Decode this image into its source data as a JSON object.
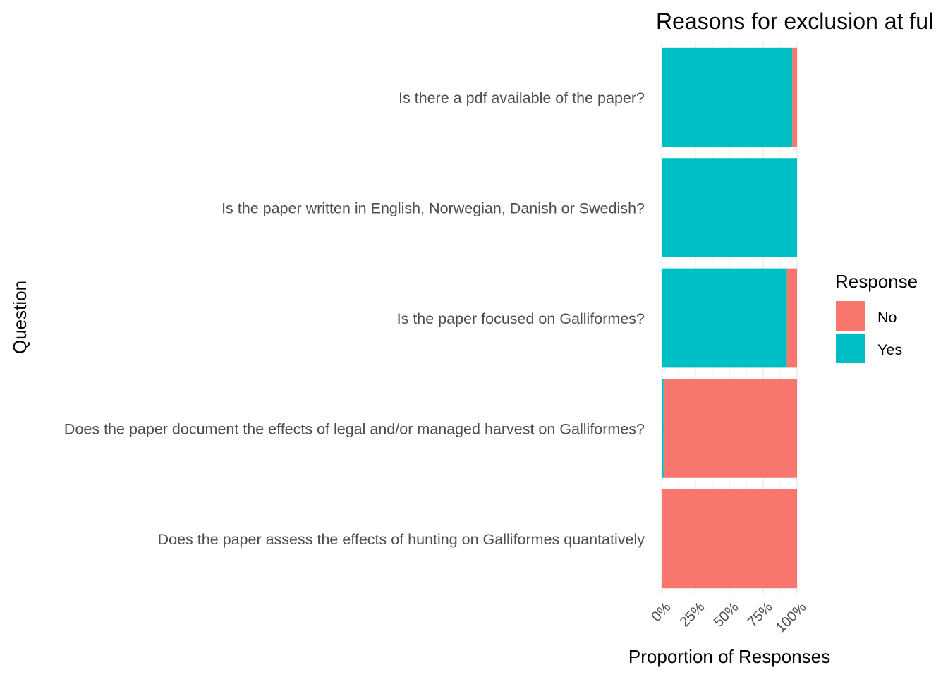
{
  "chart_data": {
    "type": "bar",
    "orientation": "horizontal",
    "stacked": true,
    "title": "Reasons for exclusion at ful",
    "xlabel": "Proportion of Responses",
    "ylabel": "Question",
    "xlim": [
      0,
      1
    ],
    "x_ticks": [
      {
        "value": 0,
        "label": "0%"
      },
      {
        "value": 0.25,
        "label": "25%"
      },
      {
        "value": 0.5,
        "label": "50%"
      },
      {
        "value": 0.75,
        "label": "75%"
      },
      {
        "value": 1,
        "label": "100%"
      }
    ],
    "grid": true,
    "categories": [
      "Is there a pdf available of the paper?",
      "Is the paper written in English, Norwegian, Danish or Swedish?",
      "Is the paper focused on Galliformes?",
      "Does the paper document the effects of legal and/or managed harvest on Galliformes?",
      "Does the paper assess the effects of hunting on Galliformes quantatively"
    ],
    "series": [
      {
        "name": "Yes",
        "color": "#00BFC4",
        "values": [
          0.965,
          1.0,
          0.925,
          0.015,
          0.0
        ]
      },
      {
        "name": "No",
        "color": "#F8766D",
        "values": [
          0.035,
          0.0,
          0.075,
          0.985,
          1.0
        ]
      }
    ],
    "legend": {
      "title": "Response",
      "position": "right",
      "entries": [
        {
          "label": "No",
          "color": "#F8766D"
        },
        {
          "label": "Yes",
          "color": "#00BFC4"
        }
      ]
    }
  }
}
